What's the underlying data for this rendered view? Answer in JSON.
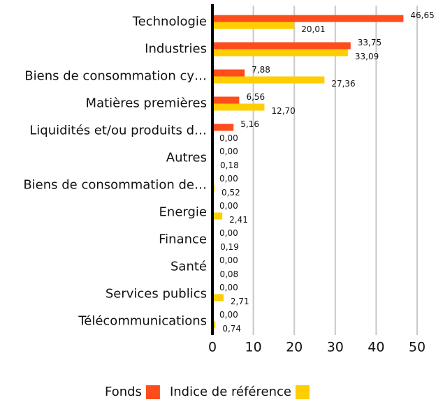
{
  "chart_data": {
    "type": "hbar",
    "categories": [
      "Technologie",
      "Industries",
      "Biens de consommation cy…",
      "Matières premières",
      "Liquidités et/ou produits d…",
      "Autres",
      "Biens de consommation de…",
      "Energie",
      "Finance",
      "Santé",
      "Services publics",
      "Télécommunications"
    ],
    "series": [
      {
        "name": "Fonds",
        "color": "#ff4c1c",
        "values": [
          46.65,
          33.75,
          7.88,
          6.56,
          5.16,
          0,
          0,
          0,
          0,
          0,
          0,
          0
        ],
        "value_labels": [
          "46,65",
          "33,75",
          "7,88",
          "6,56",
          "5,16",
          "0,00",
          "0,00",
          "0,00",
          "0,00",
          "0,00",
          "0,00",
          "0,00"
        ]
      },
      {
        "name": "Indice de référence",
        "color": "#ffce00",
        "values": [
          20.01,
          33.09,
          27.36,
          12.7,
          0,
          0.18,
          0.52,
          2.41,
          0.19,
          0.08,
          2.71,
          0.74
        ],
        "value_labels": [
          "20,01",
          "33,09",
          "27,36",
          "12,70",
          "0,00",
          "0,18",
          "0,52",
          "2,41",
          "0,19",
          "0,08",
          "2,71",
          "0,74"
        ]
      }
    ],
    "xlim": [
      0,
      50
    ],
    "xticks": [
      0,
      10,
      20,
      30,
      40,
      50
    ],
    "grid": true,
    "legend": "bottom"
  }
}
